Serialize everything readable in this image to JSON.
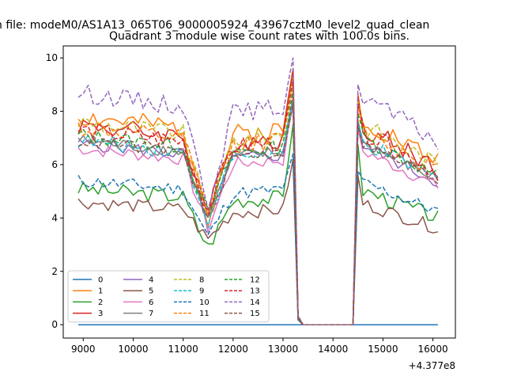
{
  "figure": {
    "suptitle": "n file: modeM0/AS1A13_065T06_9000005924_43967cztM0_level2_quad_clean"
  },
  "chart_data": {
    "type": "line",
    "title": "Quadrant 3 module wise count rates with 100.0s bins.",
    "xlabel": "",
    "ylabel": "",
    "x_offset_label": "+4.377e8",
    "xlim": [
      8600,
      16450
    ],
    "ylim": [
      -0.5,
      10.45
    ],
    "xticks": [
      9000,
      10000,
      11000,
      12000,
      13000,
      14000,
      15000,
      16000
    ],
    "xtick_labels": [
      "9000",
      "10000",
      "11000",
      "12000",
      "13000",
      "14000",
      "15000",
      "16000"
    ],
    "yticks": [
      0,
      2,
      4,
      6,
      8,
      10
    ],
    "ytick_labels": [
      "0",
      "2",
      "4",
      "6",
      "8",
      "10"
    ],
    "grid": false,
    "legend": {
      "position": "lower-left",
      "columns": 4
    },
    "segments": {
      "a": {
        "start": 8900,
        "end": 13200
      },
      "gap": {
        "start": 13300,
        "end": 14400
      },
      "b": {
        "start": 14500,
        "end": 16150
      }
    },
    "dip_center": 11500,
    "series": [
      {
        "name": "0",
        "color": "#1f77b4",
        "dash": "solid",
        "level": 0.0,
        "dip": 0.0,
        "peak": 0.0,
        "wiggle": 0.0
      },
      {
        "name": "1",
        "color": "#ff7f0e",
        "dash": "solid",
        "level": 7.8,
        "dip": 4.0,
        "peak": 9.6,
        "wiggle": 0.4
      },
      {
        "name": "2",
        "color": "#2ca02c",
        "dash": "solid",
        "level": 5.1,
        "dip": 2.9,
        "peak": 7.5,
        "wiggle": 0.3
      },
      {
        "name": "3",
        "color": "#d62728",
        "dash": "solid",
        "level": 7.5,
        "dip": 4.2,
        "peak": 9.5,
        "wiggle": 0.4
      },
      {
        "name": "4",
        "color": "#9467bd",
        "dash": "solid",
        "level": 6.8,
        "dip": 3.8,
        "peak": 8.4,
        "wiggle": 0.25
      },
      {
        "name": "5",
        "color": "#8c564b",
        "dash": "solid",
        "level": 4.6,
        "dip": 3.2,
        "peak": 6.2,
        "wiggle": 0.25
      },
      {
        "name": "6",
        "color": "#e377c2",
        "dash": "solid",
        "level": 6.6,
        "dip": 3.6,
        "peak": 8.2,
        "wiggle": 0.25
      },
      {
        "name": "7",
        "color": "#7f7f7f",
        "dash": "solid",
        "level": 6.9,
        "dip": 3.9,
        "peak": 8.5,
        "wiggle": 0.25
      },
      {
        "name": "8",
        "color": "#bcbd22",
        "dash": "dashed",
        "level": 7.6,
        "dip": 4.1,
        "peak": 9.3,
        "wiggle": 0.35
      },
      {
        "name": "9",
        "color": "#17becf",
        "dash": "dashed",
        "level": 6.9,
        "dip": 3.9,
        "peak": 8.4,
        "wiggle": 0.3
      },
      {
        "name": "10",
        "color": "#1f77b4",
        "dash": "dashed",
        "level": 5.4,
        "dip": 3.3,
        "peak": 6.4,
        "wiggle": 0.25
      },
      {
        "name": "11",
        "color": "#ff7f0e",
        "dash": "dashed",
        "level": 7.4,
        "dip": 4.2,
        "peak": 9.0,
        "wiggle": 0.35
      },
      {
        "name": "12",
        "color": "#2ca02c",
        "dash": "dashed",
        "level": 7.1,
        "dip": 4.1,
        "peak": 8.8,
        "wiggle": 0.3
      },
      {
        "name": "13",
        "color": "#d62728",
        "dash": "dashed",
        "level": 7.3,
        "dip": 4.3,
        "peak": 9.2,
        "wiggle": 0.35
      },
      {
        "name": "14",
        "color": "#9467bd",
        "dash": "dashed",
        "level": 8.7,
        "dip": 4.6,
        "peak": 10.0,
        "wiggle": 0.35
      },
      {
        "name": "15",
        "color": "#8c564b",
        "dash": "dashed",
        "level": 6.9,
        "dip": 3.9,
        "peak": 8.3,
        "wiggle": 0.25
      }
    ]
  }
}
